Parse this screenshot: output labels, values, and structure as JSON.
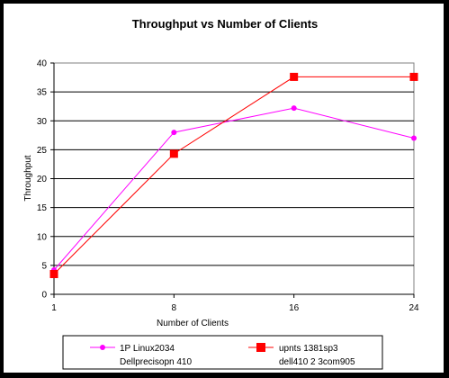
{
  "chart_data": {
    "type": "line",
    "title": "Throughput vs Number of Clients",
    "xlabel": "Number of Clients",
    "ylabel": "Throughput",
    "categories": [
      "1",
      "8",
      "16",
      "24"
    ],
    "ylim": [
      0,
      40
    ],
    "yticks": [
      "0",
      "5",
      "10",
      "15",
      "20",
      "25",
      "30",
      "35",
      "40"
    ],
    "grid": "horizontal",
    "legend_position": "bottom",
    "series": [
      {
        "name_line1": "1P Linux2034",
        "name_line2": "Dellprecisopn 410",
        "color": "#ff00ff",
        "marker": "circle",
        "values": [
          4.2,
          28.0,
          32.2,
          27.0
        ]
      },
      {
        "name_line1": "upnts 1381sp3",
        "name_line2": "dell410 2 3com905",
        "color": "#ff0000",
        "marker": "square",
        "values": [
          3.5,
          24.3,
          37.6,
          37.6
        ]
      }
    ]
  }
}
